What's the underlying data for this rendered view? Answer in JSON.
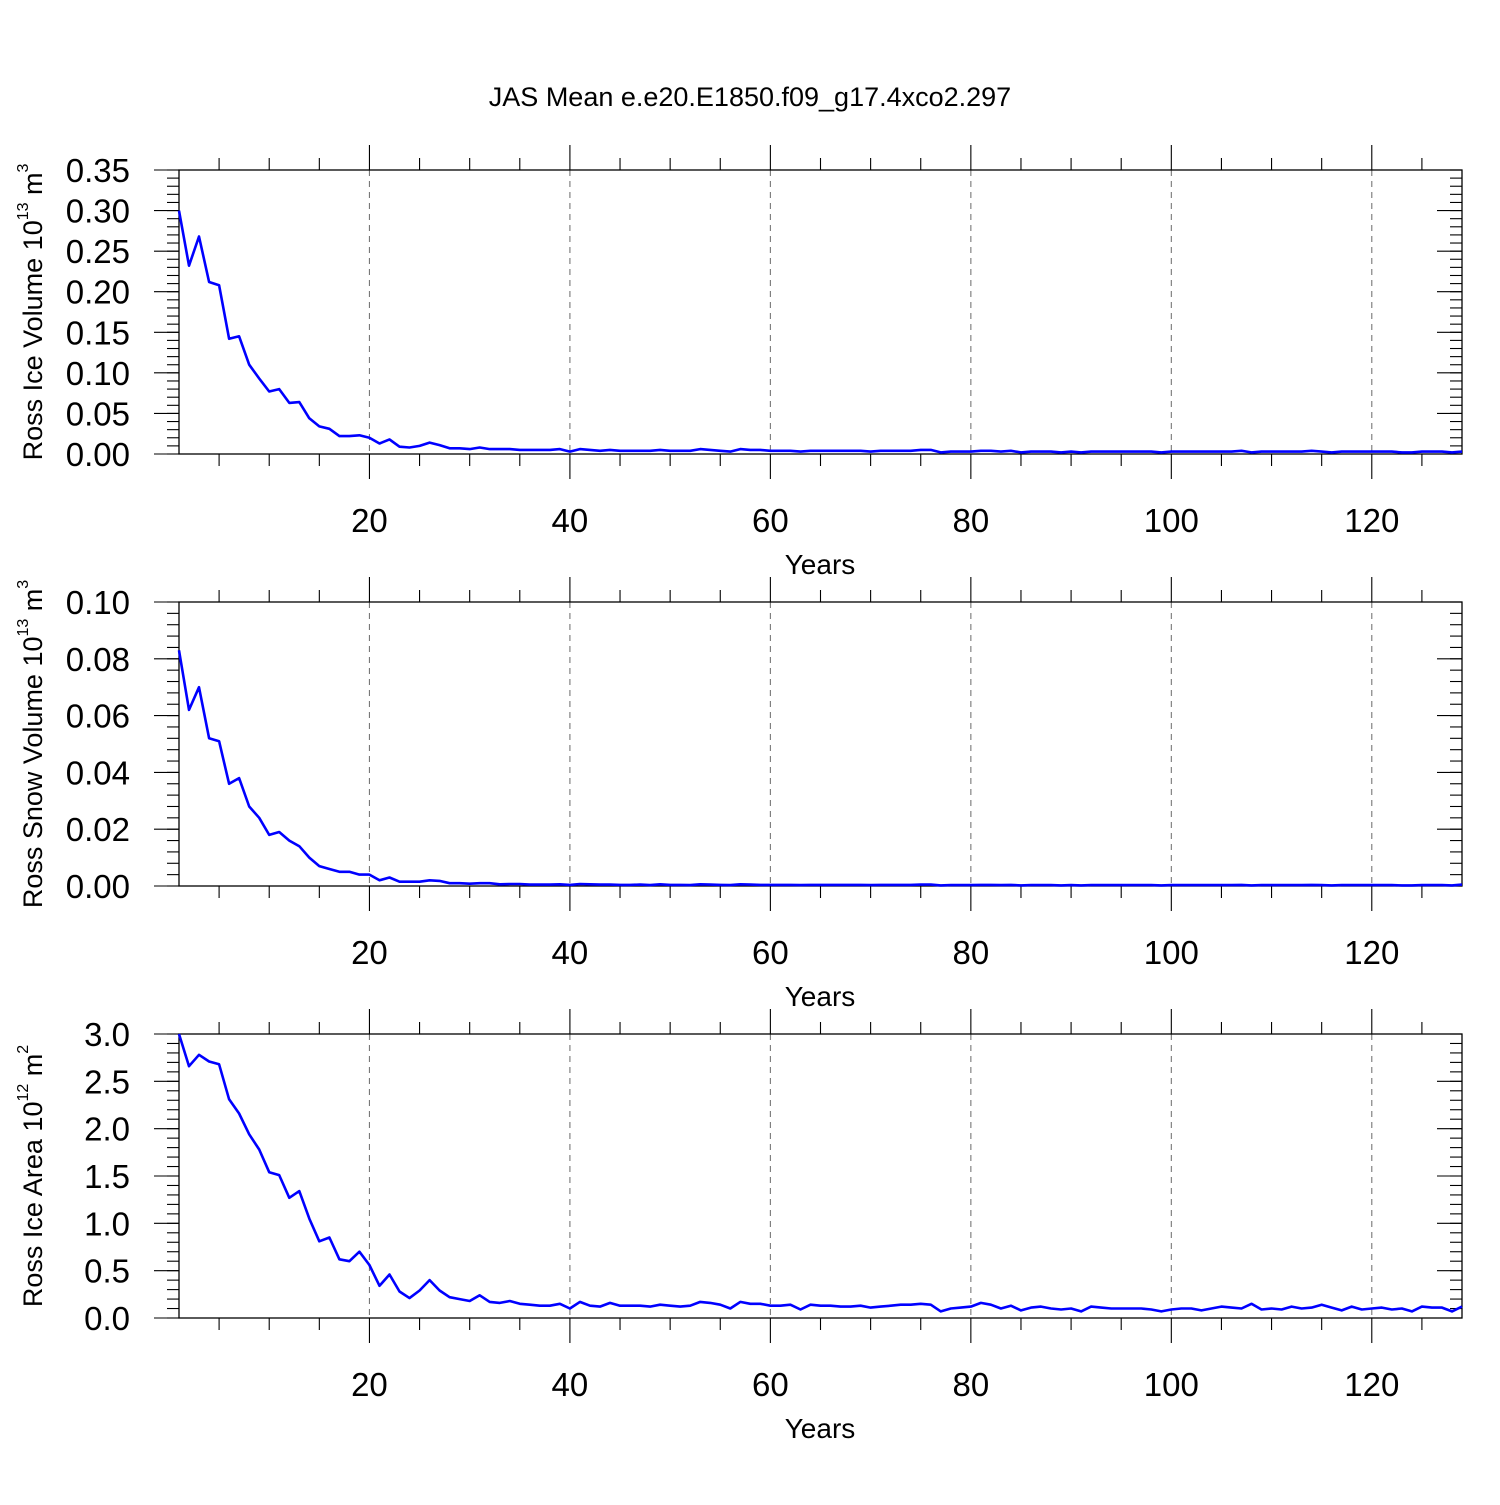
{
  "figure": {
    "title": "JAS Mean e.e20.E1850.f09_g17.4xco2.297"
  },
  "colors": {
    "series": "#0000ff",
    "axes": "#000000",
    "grid": "#777777"
  },
  "chart_data": [
    {
      "type": "line",
      "title": "JAS Mean e.e20.E1850.f09_g17.4xco2.297",
      "xlabel": "Years",
      "ylabel": {
        "text": "Ross Ice Volume 10",
        "sup1": "13",
        "unit": " m",
        "sup2": "3"
      },
      "xlim": [
        1,
        129
      ],
      "ylim": [
        0,
        0.35
      ],
      "xticks": [
        20,
        40,
        60,
        80,
        100,
        120
      ],
      "xtick_labels": [
        "20",
        "40",
        "60",
        "80",
        "100",
        "120"
      ],
      "yticks": [
        0,
        0.05,
        0.1,
        0.15,
        0.2,
        0.25,
        0.3,
        0.35
      ],
      "ytick_labels": [
        "0.00",
        "0.05",
        "0.10",
        "0.15",
        "0.20",
        "0.25",
        "0.30",
        "0.35"
      ],
      "yminor_step": 0.01,
      "grid": "vertical dashed at major x ticks",
      "x_start": 1,
      "values": [
        0.3,
        0.232,
        0.268,
        0.212,
        0.208,
        0.142,
        0.145,
        0.11,
        0.093,
        0.077,
        0.08,
        0.063,
        0.064,
        0.044,
        0.034,
        0.031,
        0.022,
        0.022,
        0.023,
        0.02,
        0.013,
        0.018,
        0.009,
        0.008,
        0.01,
        0.014,
        0.011,
        0.007,
        0.007,
        0.006,
        0.008,
        0.006,
        0.006,
        0.006,
        0.005,
        0.005,
        0.005,
        0.005,
        0.006,
        0.003,
        0.006,
        0.005,
        0.004,
        0.005,
        0.004,
        0.004,
        0.004,
        0.004,
        0.005,
        0.004,
        0.004,
        0.004,
        0.006,
        0.005,
        0.004,
        0.003,
        0.006,
        0.005,
        0.005,
        0.004,
        0.004,
        0.004,
        0.003,
        0.004,
        0.004,
        0.004,
        0.004,
        0.004,
        0.004,
        0.003,
        0.004,
        0.004,
        0.004,
        0.004,
        0.005,
        0.005,
        0.002,
        0.003,
        0.003,
        0.003,
        0.004,
        0.004,
        0.003,
        0.004,
        0.002,
        0.003,
        0.003,
        0.003,
        0.002,
        0.003,
        0.002,
        0.003,
        0.003,
        0.003,
        0.003,
        0.003,
        0.003,
        0.003,
        0.002,
        0.003,
        0.003,
        0.003,
        0.003,
        0.003,
        0.003,
        0.003,
        0.004,
        0.002,
        0.003,
        0.003,
        0.003,
        0.003,
        0.003,
        0.004,
        0.003,
        0.002,
        0.003,
        0.003,
        0.003,
        0.003,
        0.003,
        0.003,
        0.002,
        0.002,
        0.003,
        0.003,
        0.003,
        0.002,
        0.003
      ]
    },
    {
      "type": "line",
      "xlabel": "Years",
      "ylabel": {
        "text": "Ross Snow Volume 10",
        "sup1": "13",
        "unit": " m",
        "sup2": "3"
      },
      "xlim": [
        1,
        129
      ],
      "ylim": [
        0,
        0.1
      ],
      "xticks": [
        20,
        40,
        60,
        80,
        100,
        120
      ],
      "xtick_labels": [
        "20",
        "40",
        "60",
        "80",
        "100",
        "120"
      ],
      "yticks": [
        0,
        0.02,
        0.04,
        0.06,
        0.08,
        0.1
      ],
      "ytick_labels": [
        "0.00",
        "0.02",
        "0.04",
        "0.06",
        "0.08",
        "0.10"
      ],
      "yminor_step": 0.004,
      "grid": "vertical dashed at major x ticks",
      "x_start": 1,
      "values": [
        0.083,
        0.062,
        0.07,
        0.052,
        0.051,
        0.036,
        0.038,
        0.028,
        0.024,
        0.018,
        0.019,
        0.016,
        0.014,
        0.01,
        0.007,
        0.006,
        0.005,
        0.005,
        0.004,
        0.004,
        0.002,
        0.003,
        0.0015,
        0.0015,
        0.0015,
        0.002,
        0.0018,
        0.001,
        0.001,
        0.0008,
        0.001,
        0.001,
        0.0006,
        0.0007,
        0.0007,
        0.0005,
        0.0005,
        0.0005,
        0.0006,
        0.0004,
        0.0007,
        0.0006,
        0.0005,
        0.0005,
        0.0004,
        0.0004,
        0.0005,
        0.0003,
        0.0006,
        0.0004,
        0.0004,
        0.0003,
        0.0006,
        0.0005,
        0.0004,
        0.0003,
        0.0006,
        0.0005,
        0.0004,
        0.0004,
        0.0004,
        0.0004,
        0.0003,
        0.0004,
        0.0004,
        0.0004,
        0.0004,
        0.0004,
        0.0004,
        0.0003,
        0.0004,
        0.0004,
        0.0004,
        0.0004,
        0.0005,
        0.0005,
        0.0002,
        0.0003,
        0.0003,
        0.0003,
        0.0004,
        0.0004,
        0.0003,
        0.0004,
        0.0002,
        0.0003,
        0.0003,
        0.0003,
        0.0002,
        0.0003,
        0.0002,
        0.0003,
        0.0003,
        0.0003,
        0.0003,
        0.0003,
        0.0003,
        0.0003,
        0.0002,
        0.0003,
        0.0003,
        0.0003,
        0.0003,
        0.0003,
        0.0003,
        0.0003,
        0.0004,
        0.0002,
        0.0003,
        0.0003,
        0.0003,
        0.0003,
        0.0003,
        0.0004,
        0.0003,
        0.0002,
        0.0003,
        0.0003,
        0.0003,
        0.0003,
        0.0003,
        0.0003,
        0.0002,
        0.0002,
        0.0003,
        0.0003,
        0.0003,
        0.0002,
        0.0005
      ]
    },
    {
      "type": "line",
      "xlabel": "Years",
      "ylabel": {
        "text": "Ross Ice Area 10",
        "sup1": "12",
        "unit": " m",
        "sup2": "2"
      },
      "xlim": [
        1,
        129
      ],
      "ylim": [
        0,
        3.0
      ],
      "xticks": [
        20,
        40,
        60,
        80,
        100,
        120
      ],
      "xtick_labels": [
        "20",
        "40",
        "60",
        "80",
        "100",
        "120"
      ],
      "yticks": [
        0,
        0.5,
        1.0,
        1.5,
        2.0,
        2.5,
        3.0
      ],
      "ytick_labels": [
        "0.0",
        "0.5",
        "1.0",
        "1.5",
        "2.0",
        "2.5",
        "3.0"
      ],
      "yminor_step": 0.1,
      "grid": "vertical dashed at major x ticks",
      "x_start": 1,
      "values": [
        3.0,
        2.66,
        2.78,
        2.71,
        2.68,
        2.31,
        2.16,
        1.94,
        1.78,
        1.54,
        1.51,
        1.27,
        1.34,
        1.05,
        0.81,
        0.85,
        0.62,
        0.6,
        0.7,
        0.56,
        0.34,
        0.46,
        0.28,
        0.21,
        0.29,
        0.4,
        0.29,
        0.22,
        0.2,
        0.18,
        0.24,
        0.17,
        0.16,
        0.18,
        0.15,
        0.14,
        0.13,
        0.13,
        0.15,
        0.1,
        0.17,
        0.13,
        0.12,
        0.16,
        0.13,
        0.13,
        0.13,
        0.12,
        0.14,
        0.13,
        0.12,
        0.13,
        0.17,
        0.16,
        0.14,
        0.1,
        0.17,
        0.15,
        0.15,
        0.13,
        0.13,
        0.14,
        0.09,
        0.14,
        0.13,
        0.13,
        0.12,
        0.12,
        0.13,
        0.11,
        0.12,
        0.13,
        0.14,
        0.14,
        0.15,
        0.14,
        0.07,
        0.1,
        0.11,
        0.12,
        0.16,
        0.14,
        0.1,
        0.13,
        0.08,
        0.11,
        0.12,
        0.1,
        0.09,
        0.1,
        0.07,
        0.12,
        0.11,
        0.1,
        0.1,
        0.1,
        0.1,
        0.09,
        0.07,
        0.09,
        0.1,
        0.1,
        0.08,
        0.1,
        0.12,
        0.11,
        0.1,
        0.15,
        0.09,
        0.1,
        0.09,
        0.12,
        0.1,
        0.11,
        0.14,
        0.11,
        0.08,
        0.12,
        0.09,
        0.1,
        0.11,
        0.09,
        0.1,
        0.07,
        0.12,
        0.11,
        0.11,
        0.07,
        0.12
      ]
    }
  ]
}
